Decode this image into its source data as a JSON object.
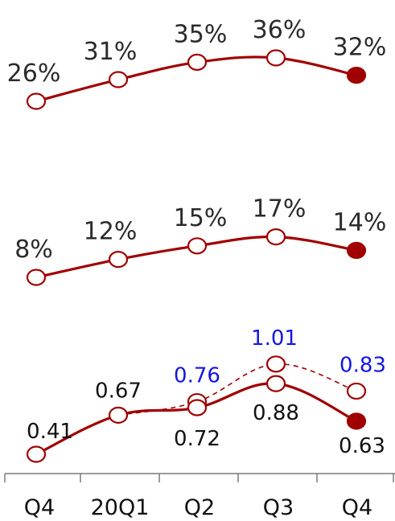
{
  "chart_data": [
    {
      "type": "line",
      "categories": [
        "Q4",
        "20Q1",
        "Q2",
        "Q3",
        "Q4"
      ],
      "series": [
        {
          "values": [
            26,
            31,
            35,
            36,
            32
          ],
          "labels": [
            "26%",
            "31%",
            "35%",
            "36%",
            "32%"
          ]
        }
      ],
      "color": "#a00000"
    },
    {
      "type": "line",
      "categories": [
        "Q4",
        "20Q1",
        "Q2",
        "Q3",
        "Q4"
      ],
      "series": [
        {
          "values": [
            8,
            12,
            15,
            17,
            14
          ],
          "labels": [
            "8%",
            "12%",
            "15%",
            "17%",
            "14%"
          ]
        }
      ],
      "color": "#a00000"
    },
    {
      "type": "line",
      "categories": [
        "Q4",
        "20Q1",
        "Q2",
        "Q3",
        "Q4"
      ],
      "series": [
        {
          "style": "solid",
          "values": [
            0.41,
            0.67,
            0.72,
            0.88,
            0.63
          ],
          "labels": [
            "0.41",
            "0.67",
            "0.72",
            "0.88",
            "0.63"
          ],
          "label_color": "#111111"
        },
        {
          "style": "dashed",
          "values": [
            null,
            0.67,
            0.76,
            1.01,
            0.83
          ],
          "labels": [
            null,
            null,
            "0.76",
            "1.01",
            "0.83"
          ],
          "label_color": "#1515e6"
        }
      ],
      "color": "#a00000"
    }
  ],
  "x_axis": {
    "ticks": [
      "Q4",
      "20Q1",
      "Q2",
      "Q3",
      "Q4"
    ]
  }
}
